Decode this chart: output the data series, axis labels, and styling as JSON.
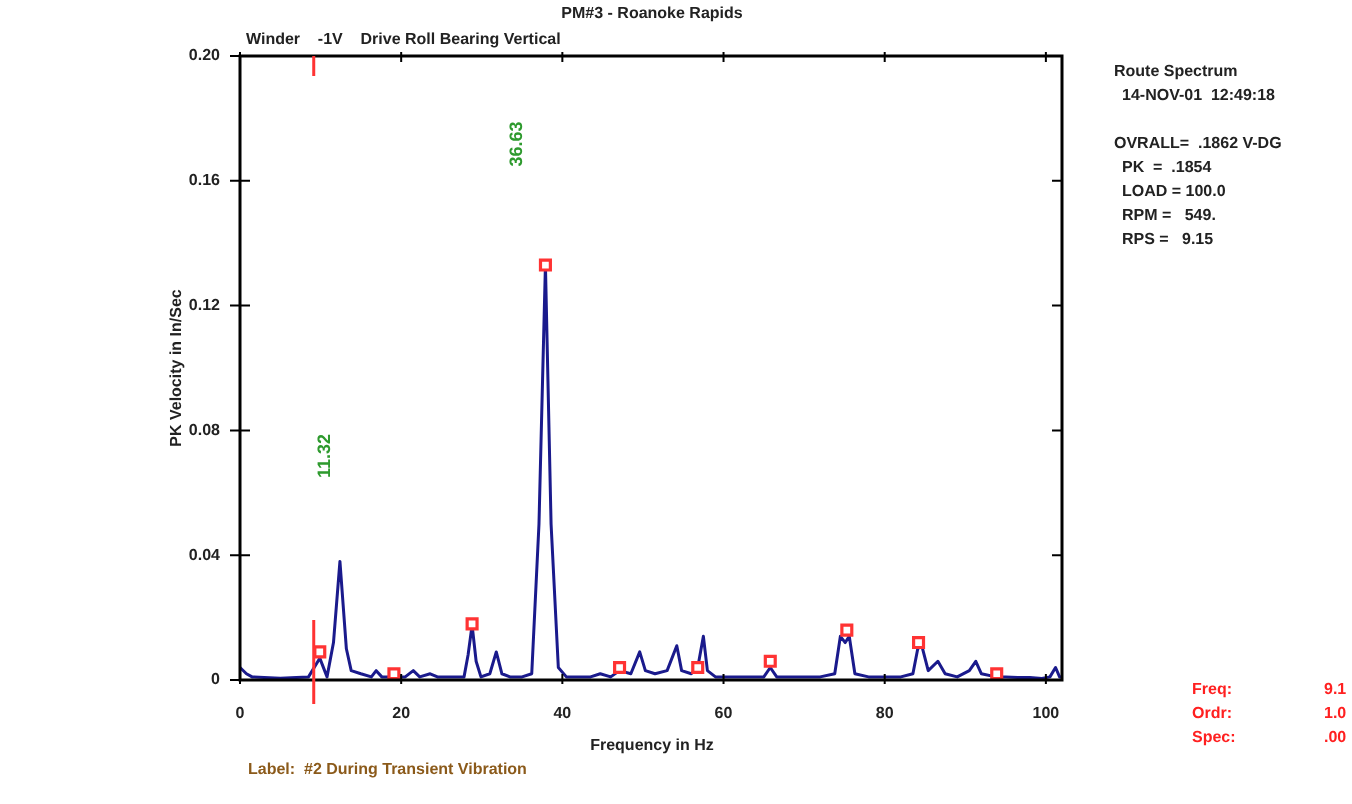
{
  "chart_data": {
    "type": "line",
    "title": "PM#3 - Roanoke Rapids",
    "subtitle": "Winder    -1V    Drive Roll Bearing Vertical",
    "xlabel": "Frequency in Hz",
    "ylabel": "PK Velocity in In/Sec",
    "xlim": [
      0,
      102
    ],
    "xticks": [
      0,
      20,
      40,
      60,
      80,
      100
    ],
    "ylim": [
      0,
      0.2
    ],
    "yticks": [
      0,
      0.04,
      0.08,
      0.12,
      0.16,
      {
        "value": 0.2,
        "label": "0.20"
      }
    ],
    "grid": false,
    "legend": false,
    "series": [
      {
        "color": "#1a1a8c",
        "marker": "none",
        "x": [
          0,
          0.8,
          1.5,
          3,
          5,
          7,
          8.5,
          9.9,
          10.8,
          11.6,
          12.4,
          13.2,
          13.8,
          15,
          16.3,
          16.9,
          17.6,
          19,
          20.5,
          21.5,
          22.3,
          23.6,
          24.5,
          26,
          27.8,
          28.3,
          28.8,
          29.3,
          29.9,
          31,
          31.8,
          32.5,
          33.5,
          35,
          36.2,
          37.1,
          37.9,
          38.6,
          39.5,
          40.5,
          42,
          43.5,
          44.7,
          46,
          47.1,
          48.5,
          49.6,
          50.3,
          51.5,
          53,
          54.2,
          54.8,
          56,
          56.8,
          57.5,
          58,
          59,
          60.7,
          62,
          63.5,
          65,
          65.8,
          66.6,
          68,
          70,
          72,
          73.8,
          74.5,
          75.1,
          75.6,
          76.3,
          78,
          80,
          82,
          83.5,
          84.1,
          84.6,
          85.4,
          86.6,
          87.5,
          89,
          90.5,
          91.3,
          92,
          93.8,
          95,
          96.5,
          98,
          99.5,
          100.5,
          101.2,
          101.7,
          102
        ],
        "values": [
          0.004,
          0.002,
          0.001,
          0.0008,
          0.0006,
          0.0008,
          0.001,
          0.007,
          0.001,
          0.012,
          0.038,
          0.01,
          0.003,
          0.002,
          0.001,
          0.003,
          0.001,
          0.001,
          0.001,
          0.003,
          0.001,
          0.002,
          0.001,
          0.001,
          0.001,
          0.008,
          0.0176,
          0.006,
          0.001,
          0.002,
          0.009,
          0.002,
          0.001,
          0.001,
          0.002,
          0.05,
          0.133,
          0.05,
          0.004,
          0.001,
          0.001,
          0.001,
          0.002,
          0.001,
          0.003,
          0.002,
          0.009,
          0.003,
          0.002,
          0.003,
          0.011,
          0.003,
          0.002,
          0.004,
          0.014,
          0.003,
          0.001,
          0.001,
          0.001,
          0.001,
          0.001,
          0.004,
          0.001,
          0.001,
          0.001,
          0.001,
          0.002,
          0.014,
          0.012,
          0.014,
          0.002,
          0.001,
          0.001,
          0.001,
          0.002,
          0.01,
          0.011,
          0.003,
          0.006,
          0.002,
          0.001,
          0.003,
          0.006,
          0.002,
          0.001,
          0.001,
          0.0008,
          0.0008,
          0.0005,
          0.001,
          0.004,
          0.001,
          0.001
        ]
      },
      {
        "type": "scatter",
        "color": "#ff3333",
        "marker": "square",
        "x": [
          9.9,
          19.1,
          28.8,
          37.9,
          47.1,
          56.8,
          65.8,
          75.3,
          84.2,
          93.9
        ],
        "values": [
          0.009,
          0.002,
          0.018,
          0.133,
          0.004,
          0.004,
          0.006,
          0.016,
          0.012,
          0.002
        ]
      }
    ],
    "ref_lines": [
      {
        "axis": "x",
        "value": 9.15,
        "color": "#ff3333"
      }
    ],
    "annotations": [
      "11.32",
      "36.63",
      "Route Spectrum",
      "14-NOV-01  12:49:18",
      "OVRALL=  .1862 V-DG",
      "PK  =  .1854",
      "LOAD = 100.0",
      "RPM =   549.",
      "RPS =   9.15",
      "Freq: 9.1",
      "Ordr: 1.0",
      "Spec: .00",
      "Label:  #2 During Transient Vibration"
    ]
  }
}
